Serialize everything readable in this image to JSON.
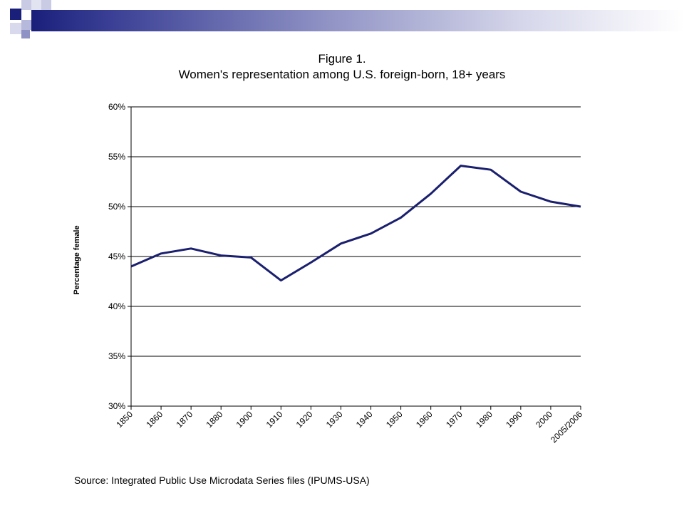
{
  "slide": {
    "source_note": "Source: Integrated Public Use Microdata Series files (IPUMS-USA)"
  },
  "colors": {
    "line": "#1a1f6e",
    "decor_dark": "#1a1f7a",
    "decor_light": "#b7b9dc"
  },
  "chart_data": {
    "type": "line",
    "title": "Figure 1.",
    "subtitle": "Women's representation among U.S. foreign-born, 18+ years",
    "xlabel": "",
    "ylabel": "Percentage female",
    "categories": [
      "1850",
      "1860",
      "1870",
      "1880",
      "1900",
      "1910",
      "1920",
      "1930",
      "1940",
      "1950",
      "1960",
      "1970",
      "1980",
      "1990",
      "2000",
      "2005/2006"
    ],
    "series": [
      {
        "name": "",
        "values": [
          44.0,
          45.3,
          45.8,
          45.1,
          44.9,
          42.6,
          44.4,
          46.3,
          47.3,
          48.9,
          51.3,
          54.1,
          53.7,
          51.5,
          50.5,
          50.0
        ]
      }
    ],
    "ylim": [
      30,
      60
    ],
    "yticks": [
      30,
      35,
      40,
      45,
      50,
      55,
      60
    ],
    "ytick_labels": [
      "30%",
      "35%",
      "40%",
      "45%",
      "50%",
      "55%",
      "60%"
    ],
    "grid": true,
    "legend": "none"
  }
}
